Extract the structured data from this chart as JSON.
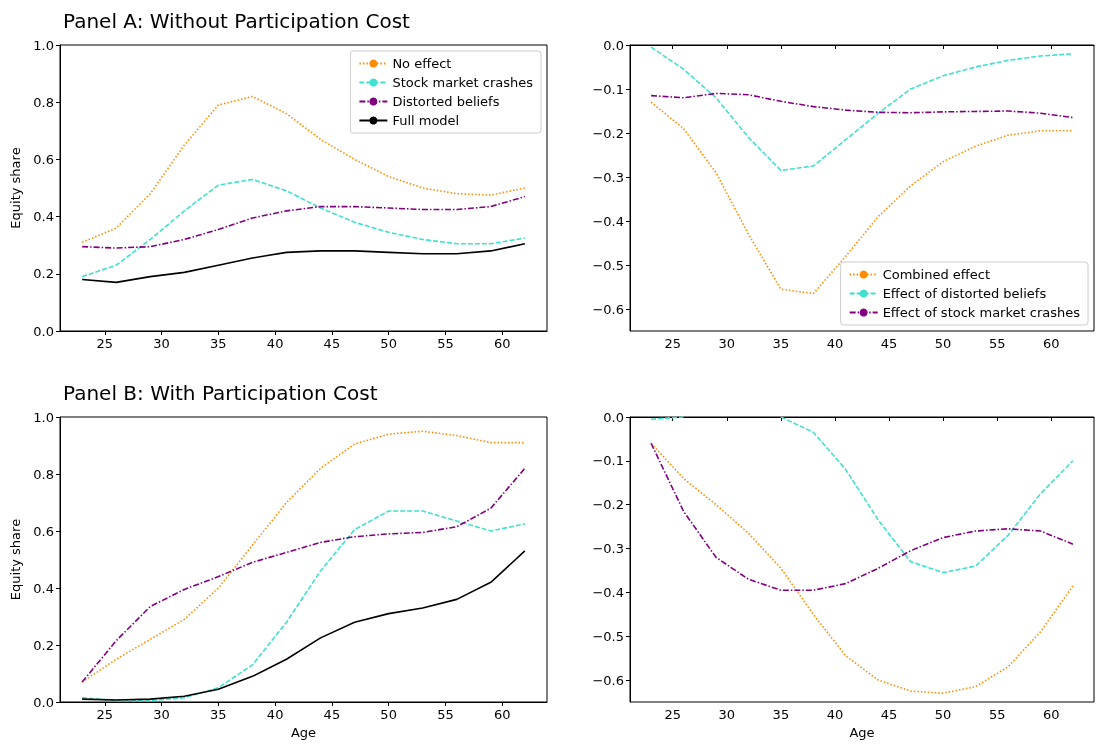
{
  "chart_data": [
    {
      "type": "line",
      "title": "Panel A: Without Participation Cost",
      "ylabel": "Equity share",
      "x": [
        23,
        26,
        29,
        32,
        35,
        38,
        41,
        44,
        47,
        50,
        53,
        56,
        59,
        62
      ],
      "xlim": [
        21.05,
        63.95
      ],
      "ylim": [
        0,
        1
      ],
      "xticks": [
        25,
        30,
        35,
        40,
        45,
        50,
        55,
        60
      ],
      "yticks": [
        {
          "value": 0,
          "label": "0.0"
        },
        {
          "value": 0.2,
          "label": "0.2"
        },
        {
          "value": 0.4,
          "label": "0.4"
        },
        {
          "value": 0.6,
          "label": "0.6"
        },
        {
          "value": 0.8,
          "label": "0.8"
        },
        {
          "value": 1,
          "label": "1.0"
        }
      ],
      "legend": "top right",
      "grid": false,
      "series": [
        {
          "name": "No effect",
          "color": "#ff8c00",
          "line_style": "dotted",
          "values": [
            0.31,
            0.36,
            0.48,
            0.65,
            0.79,
            0.82,
            0.76,
            0.67,
            0.6,
            0.54,
            0.5,
            0.48,
            0.475,
            0.5
          ]
        },
        {
          "name": "Stock market crashes",
          "color": "#40e0d0",
          "line_style": "dashed",
          "values": [
            0.19,
            0.23,
            0.32,
            0.42,
            0.51,
            0.53,
            0.49,
            0.43,
            0.38,
            0.345,
            0.32,
            0.305,
            0.305,
            0.325
          ]
        },
        {
          "name": "Distorted beliefs",
          "color": "#800080",
          "line_style": "dashdot",
          "values": [
            0.295,
            0.29,
            0.295,
            0.32,
            0.355,
            0.395,
            0.42,
            0.435,
            0.435,
            0.43,
            0.425,
            0.425,
            0.435,
            0.47
          ]
        },
        {
          "name": "Full model",
          "color": "#000000",
          "line_style": "solid",
          "values": [
            0.18,
            0.17,
            0.19,
            0.205,
            0.23,
            0.255,
            0.275,
            0.28,
            0.28,
            0.275,
            0.27,
            0.27,
            0.28,
            0.305
          ]
        }
      ]
    },
    {
      "type": "line",
      "x": [
        23,
        26,
        29,
        32,
        35,
        38,
        41,
        44,
        47,
        50,
        53,
        56,
        59,
        62
      ],
      "xlim": [
        21.05,
        63.95
      ],
      "ylim": [
        -0.65,
        0
      ],
      "xticks": [
        25,
        30,
        35,
        40,
        45,
        50,
        55,
        60
      ],
      "yticks": [
        {
          "value": -0.6,
          "label": "−0.6"
        },
        {
          "value": -0.5,
          "label": "−0.5"
        },
        {
          "value": -0.4,
          "label": "−0.4"
        },
        {
          "value": -0.3,
          "label": "−0.3"
        },
        {
          "value": -0.2,
          "label": "−0.2"
        },
        {
          "value": -0.1,
          "label": "−0.1"
        },
        {
          "value": 0,
          "label": "0.0"
        }
      ],
      "legend": "bottom right",
      "grid": false,
      "series": [
        {
          "name": "Combined effect",
          "color": "#ff8c00",
          "line_style": "dotted",
          "values": [
            -0.13,
            -0.19,
            -0.29,
            -0.43,
            -0.555,
            -0.565,
            -0.48,
            -0.39,
            -0.32,
            -0.265,
            -0.23,
            -0.205,
            -0.195,
            -0.195
          ]
        },
        {
          "name": "Effect of distorted beliefs",
          "color": "#40e0d0",
          "line_style": "dashed",
          "values": [
            -0.005,
            -0.055,
            -0.12,
            -0.21,
            -0.285,
            -0.275,
            -0.215,
            -0.155,
            -0.1,
            -0.07,
            -0.05,
            -0.035,
            -0.025,
            -0.02
          ]
        },
        {
          "name": "Effect of stock market crashes",
          "color": "#800080",
          "line_style": "dashdot",
          "values": [
            -0.115,
            -0.12,
            -0.11,
            -0.113,
            -0.128,
            -0.14,
            -0.148,
            -0.153,
            -0.154,
            -0.152,
            -0.151,
            -0.15,
            -0.155,
            -0.165
          ]
        }
      ]
    },
    {
      "type": "line",
      "title": "Panel B: With Participation Cost",
      "xlabel": "Age",
      "ylabel": "Equity share",
      "x": [
        23,
        26,
        29,
        32,
        35,
        38,
        41,
        44,
        47,
        50,
        53,
        56,
        59,
        62
      ],
      "xlim": [
        21.05,
        63.95
      ],
      "ylim": [
        0,
        1
      ],
      "xticks": [
        25,
        30,
        35,
        40,
        45,
        50,
        55,
        60
      ],
      "yticks": [
        {
          "value": 0,
          "label": "0.0"
        },
        {
          "value": 0.2,
          "label": "0.2"
        },
        {
          "value": 0.4,
          "label": "0.4"
        },
        {
          "value": 0.6,
          "label": "0.6"
        },
        {
          "value": 0.8,
          "label": "0.8"
        },
        {
          "value": 1,
          "label": "1.0"
        }
      ],
      "grid": false,
      "series": [
        {
          "color": "#ff8c00",
          "line_style": "dotted",
          "values": [
            0.07,
            0.15,
            0.22,
            0.29,
            0.4,
            0.55,
            0.7,
            0.82,
            0.905,
            0.94,
            0.95,
            0.935,
            0.91,
            0.91
          ]
        },
        {
          "color": "#40e0d0",
          "line_style": "dashed",
          "values": [
            0.015,
            0.005,
            0.005,
            0.015,
            0.05,
            0.13,
            0.28,
            0.46,
            0.605,
            0.67,
            0.67,
            0.635,
            0.6,
            0.625
          ]
        },
        {
          "color": "#800080",
          "line_style": "dashdot",
          "values": [
            0.07,
            0.215,
            0.335,
            0.395,
            0.44,
            0.49,
            0.525,
            0.56,
            0.58,
            0.59,
            0.595,
            0.615,
            0.68,
            0.82
          ]
        },
        {
          "color": "#000000",
          "line_style": "solid",
          "values": [
            0.01,
            0.007,
            0.01,
            0.02,
            0.045,
            0.09,
            0.15,
            0.225,
            0.28,
            0.31,
            0.33,
            0.36,
            0.42,
            0.53
          ]
        }
      ]
    },
    {
      "type": "line",
      "xlabel": "Age",
      "x": [
        23,
        26,
        29,
        32,
        35,
        38,
        41,
        44,
        47,
        50,
        53,
        56,
        59,
        62
      ],
      "xlim": [
        21.05,
        63.95
      ],
      "ylim": [
        -0.65,
        0
      ],
      "xticks": [
        25,
        30,
        35,
        40,
        45,
        50,
        55,
        60
      ],
      "yticks": [
        {
          "value": -0.6,
          "label": "−0.6"
        },
        {
          "value": -0.5,
          "label": "−0.5"
        },
        {
          "value": -0.4,
          "label": "−0.4"
        },
        {
          "value": -0.3,
          "label": "−0.3"
        },
        {
          "value": -0.2,
          "label": "−0.2"
        },
        {
          "value": -0.1,
          "label": "−0.1"
        },
        {
          "value": 0,
          "label": "0.0"
        }
      ],
      "grid": false,
      "series": [
        {
          "color": "#ff8c00",
          "line_style": "dotted",
          "values": [
            -0.06,
            -0.14,
            -0.2,
            -0.265,
            -0.345,
            -0.45,
            -0.545,
            -0.6,
            -0.625,
            -0.63,
            -0.615,
            -0.57,
            -0.49,
            -0.385
          ]
        },
        {
          "color": "#40e0d0",
          "line_style": "dashed",
          "values": [
            -0.005,
            0,
            null,
            null,
            0,
            -0.035,
            -0.12,
            -0.235,
            -0.33,
            -0.355,
            -0.34,
            -0.27,
            -0.175,
            -0.1
          ]
        },
        {
          "color": "#800080",
          "line_style": "dashdot",
          "values": [
            -0.06,
            -0.215,
            -0.32,
            -0.37,
            -0.395,
            -0.395,
            -0.38,
            -0.345,
            -0.305,
            -0.275,
            -0.26,
            -0.255,
            -0.26,
            -0.29
          ]
        }
      ]
    }
  ]
}
